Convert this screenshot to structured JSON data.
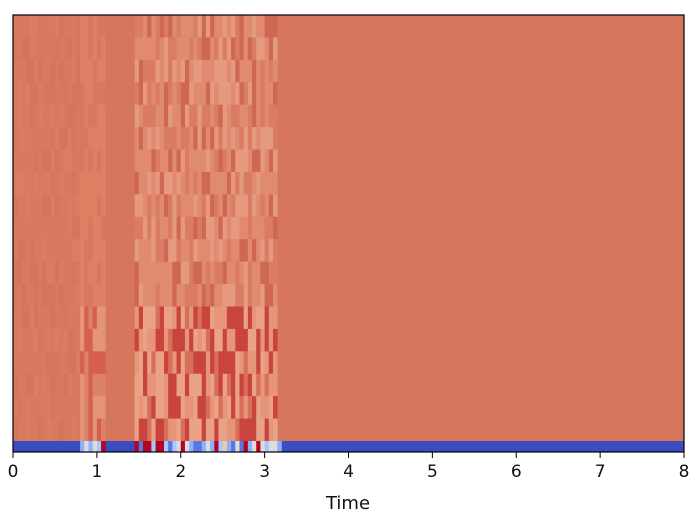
{
  "chart_data": {
    "type": "heatmap",
    "title": "",
    "xlabel": "Time",
    "ylabel": "",
    "xlim": [
      0,
      8
    ],
    "x_ticks": [
      0,
      1,
      2,
      3,
      4,
      5,
      6,
      7,
      8
    ],
    "x_tick_labels": [
      "0",
      "1",
      "2",
      "3",
      "4",
      "5",
      "6",
      "7",
      "8"
    ],
    "y_ticks_shown": false,
    "n_coefficients": 20,
    "colormap": "coolwarm",
    "colors": {
      "background": "#d6765c",
      "low_band": "#3b4cc0",
      "high": "#b40426",
      "mid": "#dddcdc",
      "frame": "#000000"
    },
    "time_segments": [
      {
        "x0": 0.0,
        "x1": 0.8,
        "level": "near-background, faint texture"
      },
      {
        "x0": 0.8,
        "x1": 1.1,
        "level": "moderate, slightly lighter/redder"
      },
      {
        "x0": 1.1,
        "x1": 1.45,
        "level": "background"
      },
      {
        "x0": 1.45,
        "x1": 3.15,
        "level": "strong activity, lighter and red stripes in lower coefficients"
      },
      {
        "x0": 3.15,
        "x1": 8.0,
        "level": "uniform background"
      }
    ],
    "bottom_band": {
      "description": "lowest coefficient row is strongly negative (blue) across time, lighter/mixed where activity occurs",
      "active_ranges": [
        [
          0.8,
          1.1
        ],
        [
          1.45,
          3.15
        ]
      ]
    }
  }
}
